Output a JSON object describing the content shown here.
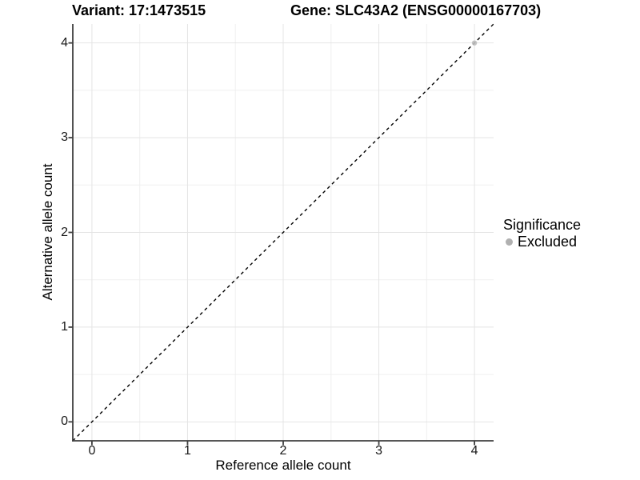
{
  "titles": {
    "variant": "Variant: 17:1473515",
    "gene": "Gene: SLC43A2 (ENSG00000167703)"
  },
  "legend": {
    "title": "Significance",
    "items": [
      {
        "label": "Excluded",
        "color": "#b0b0b0"
      }
    ]
  },
  "colors": {
    "background": "#ffffff",
    "axis_line": "#3f3f3f",
    "tick_text": "#1a1a1a",
    "grid_major": "#e4e4e4",
    "grid_minor": "#efefef",
    "identity_line": "#000000",
    "point_fill": "#bdbdbd"
  },
  "chart_data": {
    "type": "scatter",
    "title": "Variant: 17:1473515 / Gene: SLC43A2 (ENSG00000167703)",
    "xlabel": "Reference allele count",
    "ylabel": "Alternative allele count",
    "xlim": [
      -0.2,
      4.2
    ],
    "ylim": [
      -0.2,
      4.2
    ],
    "x_ticks": [
      0,
      1,
      2,
      3,
      4
    ],
    "y_ticks": [
      0,
      1,
      2,
      3,
      4
    ],
    "x_minor_ticks": [
      0.5,
      1.5,
      2.5,
      3.5
    ],
    "y_minor_ticks": [
      0.5,
      1.5,
      2.5,
      3.5
    ],
    "grid": "major and minor gridlines on white panel",
    "legend_position": "right",
    "reference_line": {
      "kind": "identity y = x",
      "style": "dashed",
      "color": "#000000"
    },
    "series": [
      {
        "name": "Excluded",
        "color": "#bdbdbd",
        "points": [
          {
            "x": 4,
            "y": 4
          }
        ]
      }
    ]
  }
}
